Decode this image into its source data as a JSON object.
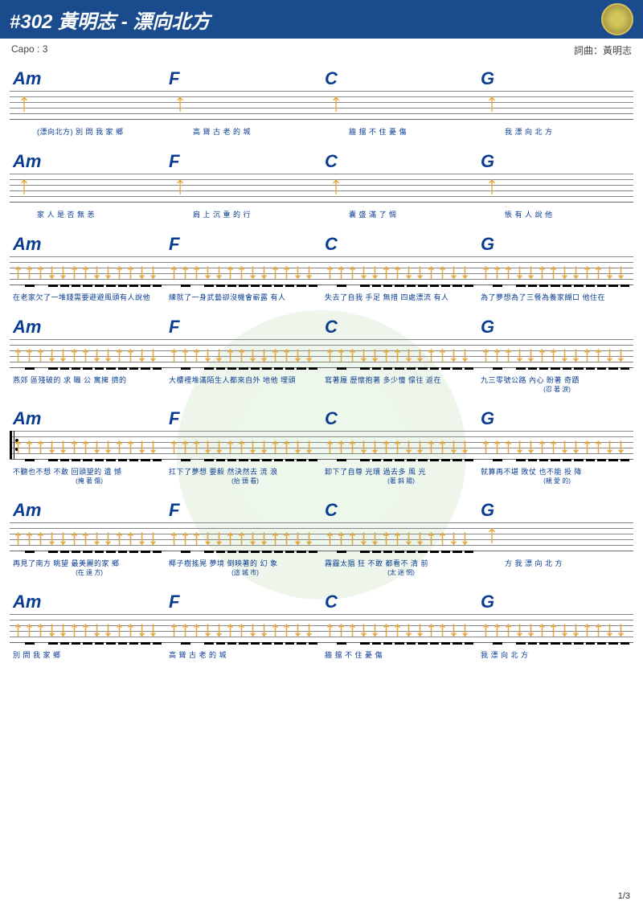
{
  "header": {
    "title": "#302 黃明志 - 漂向北方"
  },
  "meta": {
    "capo": "Capo : 3",
    "credit": "詞曲：黃明志"
  },
  "page": "1/3",
  "chords": [
    "Am",
    "F",
    "C",
    "G"
  ],
  "rows": [
    {
      "type": "single",
      "lyrics": [
        "(漂向北方)   別   問   我   家   鄉",
        "高   聳   古   老   的   城",
        "牆       擋   不   住   憂   傷",
        "我   漂   向   北   方"
      ]
    },
    {
      "type": "single",
      "lyrics": [
        "家  人  是   否   無   恙",
        "肩  上  沉   重   的   行",
        "囊       盛   滿   了   惆",
        "悵             有   人   說  他"
      ]
    },
    {
      "type": "full",
      "lyrics": [
        "在老家欠了一堆錢需要避避風頭有人說他",
        "練就了一身武藝卻沒機會嶄露     有人",
        "失去了自我   手足 無措 四處漂流 有人",
        "為了夢想為了三餐為養家餬口     他住在"
      ]
    },
    {
      "type": "full",
      "lyrics": [
        "燕郊 區殘破的 求 職 公    寓擁   擠的",
        "大樓裡堆滿陌生人都來自外   地他 埋頭",
        "寫著履   歷懷抱著 多少憧   憬往 返在",
        "九三零號公路 內心   盼著 奇蹟"
      ],
      "sub": [
        "",
        "",
        "",
        "(忍   著   淚)"
      ]
    },
    {
      "type": "full",
      "repeat": true,
      "lyrics": [
        "不聽也不想   不敢 回頭望的 遺   憾",
        "扛下了夢想   要毅 然決然去 流   浪",
        "卸下了自尊   光環   過去多 風   光",
        "就算再不堪   敗仗   也不能 投   降"
      ],
      "sub": [
        "(掩   著   傷)",
        "(抬   頭   看)",
        "(著   斜   陽)",
        "(親   愛   的)"
      ]
    },
    {
      "type": "full-g1",
      "lyrics": [
        "再見了南方 眺望 最美麗的家   鄉",
        "椰子樹搖晃 夢境 倒映著的 幻   象",
        "霧霾太猖   狂   不敢   都看不 清   前",
        "方     我   漂   向   北   方"
      ],
      "sub": [
        "(在   遠   方)",
        "(這   城   市)",
        "(太   迷   惘)",
        ""
      ]
    },
    {
      "type": "full",
      "lyrics": [
        "別   問   我   家   鄉",
        "高   聳   古   老   的   城",
        "牆       擋   不   住   憂   傷",
        "我   漂   向   北   方"
      ]
    }
  ]
}
